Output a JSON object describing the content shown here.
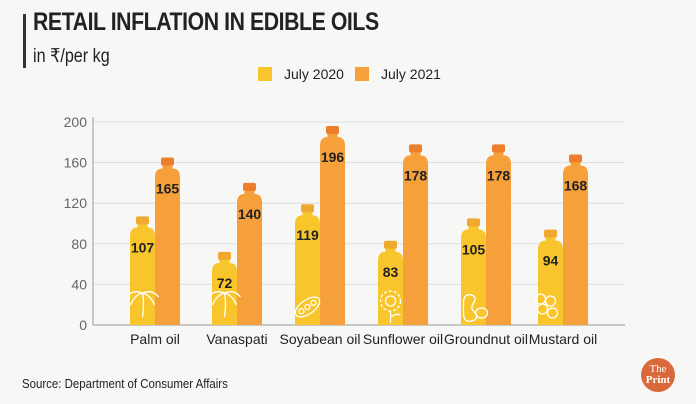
{
  "chart_data": {
    "type": "bar",
    "title": "RETAIL INFLATION IN EDIBLE OILS",
    "subtitle": "in ₹/per kg",
    "categories": [
      "Palm oil",
      "Vanaspati",
      "Soyabean oil",
      "Sunflower oil",
      "Groundnut oil",
      "Mustard oil"
    ],
    "series": [
      {
        "name": "July 2020",
        "values": [
          107,
          72,
          119,
          83,
          105,
          94
        ],
        "color": "#F8C62C"
      },
      {
        "name": "July 2021",
        "values": [
          165,
          140,
          196,
          178,
          178,
          168
        ],
        "color": "#F6A03C"
      }
    ],
    "ylim": [
      0,
      200
    ],
    "yticks": [
      0,
      40,
      80,
      120,
      160,
      200
    ],
    "grid": true,
    "legend": "top-right",
    "icons": [
      "palm-tree-icon",
      "coconut-palm-icon",
      "soybean-pod-icon",
      "sunflower-icon",
      "peanut-icon",
      "mustard-seeds-icon"
    ],
    "source": "Source: Department of Consumer Affairs"
  },
  "logo": "ThePrint"
}
